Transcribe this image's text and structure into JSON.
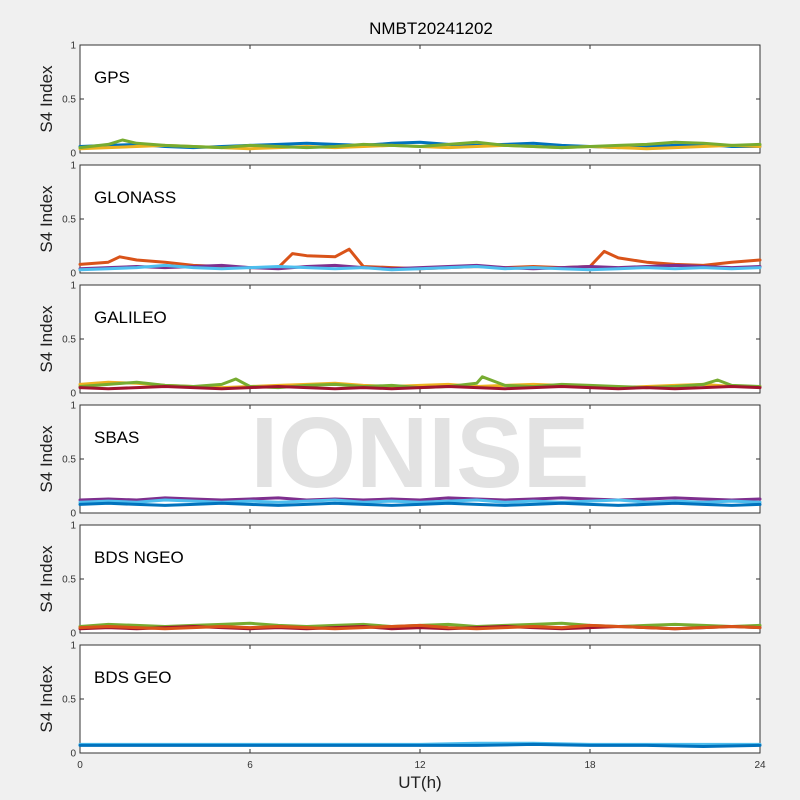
{
  "figure": {
    "title": "NMBT20241202",
    "watermark": "IONISE"
  },
  "chart_data": {
    "type": "line",
    "title": "NMBT20241202",
    "xlabel": "UT(h)",
    "ylabel": "S4 Index",
    "xlim": [
      0,
      24
    ],
    "ylim": [
      0,
      1
    ],
    "xticks": [
      "0",
      "6",
      "12",
      "18",
      "24"
    ],
    "yticks": [
      "0",
      "0.5",
      "1"
    ],
    "grid": false,
    "series_colors": [
      "#0072BD",
      "#D95319",
      "#EDB120",
      "#7E2F8E",
      "#77AC30",
      "#4DBEEE",
      "#A2142F"
    ],
    "panels": [
      {
        "name": "GPS",
        "series": [
          {
            "x": [
              0,
              1,
              2,
              3,
              4,
              5,
              6,
              7,
              8,
              9,
              10,
              11,
              12,
              13,
              14,
              15,
              16,
              17,
              18,
              19,
              20,
              21,
              22,
              23,
              24
            ],
            "y": [
              0.06,
              0.07,
              0.08,
              0.06,
              0.05,
              0.06,
              0.07,
              0.08,
              0.09,
              0.08,
              0.07,
              0.09,
              0.1,
              0.08,
              0.07,
              0.08,
              0.09,
              0.07,
              0.06,
              0.05,
              0.06,
              0.07,
              0.08,
              0.06,
              0.06
            ]
          },
          {
            "x": [
              0,
              1,
              2,
              3,
              4,
              5,
              6,
              7,
              8,
              9,
              10,
              11,
              12,
              13,
              14,
              15,
              16,
              17,
              18,
              19,
              20,
              21,
              22,
              23,
              24
            ],
            "y": [
              0.04,
              0.05,
              0.06,
              0.07,
              0.06,
              0.05,
              0.04,
              0.05,
              0.06,
              0.05,
              0.06,
              0.07,
              0.06,
              0.05,
              0.06,
              0.07,
              0.06,
              0.05,
              0.06,
              0.05,
              0.04,
              0.05,
              0.06,
              0.07,
              0.06
            ]
          },
          {
            "x": [
              0,
              1,
              1.5,
              2,
              3,
              4,
              5,
              6,
              7,
              8,
              9,
              10,
              11,
              12,
              13,
              14,
              15,
              16,
              17,
              18,
              19,
              20,
              21,
              22,
              23,
              24
            ],
            "y": [
              0.05,
              0.08,
              0.12,
              0.09,
              0.07,
              0.06,
              0.05,
              0.07,
              0.06,
              0.05,
              0.06,
              0.08,
              0.07,
              0.06,
              0.08,
              0.1,
              0.07,
              0.06,
              0.05,
              0.06,
              0.07,
              0.08,
              0.1,
              0.09,
              0.07,
              0.08
            ]
          }
        ]
      },
      {
        "name": "GLONASS",
        "series": [
          {
            "x": [
              0,
              1,
              1.4,
              2,
              3,
              4,
              5,
              6,
              7,
              7.5,
              8,
              9,
              9.5,
              10,
              11,
              12,
              13,
              14,
              15,
              16,
              17,
              18,
              18.5,
              19,
              20,
              21,
              22,
              23,
              24
            ],
            "y": [
              0.08,
              0.1,
              0.15,
              0.12,
              0.1,
              0.07,
              0.06,
              0.05,
              0.05,
              0.18,
              0.16,
              0.15,
              0.22,
              0.06,
              0.05,
              0.04,
              0.05,
              0.06,
              0.05,
              0.06,
              0.05,
              0.06,
              0.2,
              0.14,
              0.1,
              0.08,
              0.07,
              0.1,
              0.12
            ]
          },
          {
            "x": [
              0,
              1,
              2,
              3,
              4,
              5,
              6,
              7,
              8,
              9,
              10,
              11,
              12,
              13,
              14,
              15,
              16,
              17,
              18,
              19,
              20,
              21,
              22,
              23,
              24
            ],
            "y": [
              0.04,
              0.05,
              0.06,
              0.05,
              0.06,
              0.07,
              0.05,
              0.04,
              0.06,
              0.07,
              0.05,
              0.04,
              0.05,
              0.06,
              0.07,
              0.05,
              0.04,
              0.05,
              0.06,
              0.05,
              0.06,
              0.07,
              0.06,
              0.05,
              0.06
            ]
          },
          {
            "x": [
              0,
              1,
              2,
              3,
              4,
              5,
              6,
              7,
              8,
              9,
              10,
              11,
              12,
              13,
              14,
              15,
              16,
              17,
              18,
              19,
              20,
              21,
              22,
              23,
              24
            ],
            "y": [
              0.03,
              0.04,
              0.05,
              0.07,
              0.05,
              0.04,
              0.05,
              0.06,
              0.05,
              0.04,
              0.05,
              0.03,
              0.04,
              0.05,
              0.06,
              0.04,
              0.05,
              0.04,
              0.03,
              0.04,
              0.05,
              0.04,
              0.05,
              0.04,
              0.05
            ]
          }
        ]
      },
      {
        "name": "GALILEO",
        "series": [
          {
            "x": [
              0,
              1,
              2,
              3,
              4,
              5,
              6,
              7,
              8,
              9,
              10,
              11,
              12,
              13,
              14,
              15,
              16,
              17,
              18,
              19,
              20,
              21,
              22,
              23,
              24
            ],
            "y": [
              0.08,
              0.1,
              0.09,
              0.07,
              0.06,
              0.05,
              0.06,
              0.07,
              0.08,
              0.09,
              0.07,
              0.06,
              0.07,
              0.08,
              0.06,
              0.07,
              0.08,
              0.07,
              0.06,
              0.05,
              0.06,
              0.07,
              0.08,
              0.06,
              0.06
            ]
          },
          {
            "x": [
              0,
              1,
              2,
              3,
              4,
              5,
              5.5,
              6,
              7,
              8,
              9,
              10,
              11,
              12,
              13,
              14,
              14.2,
              15,
              16,
              17,
              18,
              19,
              20,
              21,
              22,
              22.5,
              23,
              24
            ],
            "y": [
              0.06,
              0.08,
              0.1,
              0.07,
              0.06,
              0.08,
              0.13,
              0.06,
              0.05,
              0.07,
              0.08,
              0.06,
              0.07,
              0.05,
              0.06,
              0.09,
              0.15,
              0.07,
              0.06,
              0.08,
              0.07,
              0.06,
              0.05,
              0.06,
              0.08,
              0.12,
              0.07,
              0.06
            ]
          },
          {
            "x": [
              0,
              1,
              2,
              3,
              4,
              5,
              6,
              7,
              8,
              9,
              10,
              11,
              12,
              13,
              14,
              15,
              16,
              17,
              18,
              19,
              20,
              21,
              22,
              23,
              24
            ],
            "y": [
              0.05,
              0.04,
              0.05,
              0.06,
              0.05,
              0.04,
              0.05,
              0.06,
              0.05,
              0.04,
              0.05,
              0.04,
              0.05,
              0.06,
              0.05,
              0.04,
              0.05,
              0.06,
              0.05,
              0.04,
              0.05,
              0.04,
              0.05,
              0.06,
              0.05
            ]
          }
        ]
      },
      {
        "name": "SBAS",
        "series": [
          {
            "x": [
              0,
              1,
              2,
              3,
              4,
              5,
              6,
              7,
              8,
              9,
              10,
              11,
              12,
              13,
              14,
              15,
              16,
              17,
              18,
              19,
              20,
              21,
              22,
              23,
              24
            ],
            "y": [
              0.12,
              0.13,
              0.12,
              0.14,
              0.13,
              0.12,
              0.13,
              0.14,
              0.12,
              0.13,
              0.12,
              0.13,
              0.12,
              0.14,
              0.13,
              0.12,
              0.13,
              0.14,
              0.13,
              0.12,
              0.13,
              0.14,
              0.13,
              0.12,
              0.13
            ]
          },
          {
            "x": [
              0,
              1,
              2,
              3,
              4,
              5,
              6,
              7,
              8,
              9,
              10,
              11,
              12,
              13,
              14,
              15,
              16,
              17,
              18,
              19,
              20,
              21,
              22,
              23,
              24
            ],
            "y": [
              0.1,
              0.11,
              0.1,
              0.12,
              0.11,
              0.1,
              0.11,
              0.1,
              0.11,
              0.12,
              0.1,
              0.11,
              0.1,
              0.11,
              0.12,
              0.1,
              0.11,
              0.1,
              0.11,
              0.12,
              0.1,
              0.11,
              0.1,
              0.11,
              0.1
            ]
          },
          {
            "x": [
              0,
              1,
              2,
              3,
              4,
              5,
              6,
              7,
              8,
              9,
              10,
              11,
              12,
              13,
              14,
              15,
              16,
              17,
              18,
              19,
              20,
              21,
              22,
              23,
              24
            ],
            "y": [
              0.08,
              0.09,
              0.08,
              0.07,
              0.08,
              0.09,
              0.08,
              0.07,
              0.08,
              0.09,
              0.08,
              0.07,
              0.08,
              0.09,
              0.08,
              0.07,
              0.08,
              0.09,
              0.08,
              0.07,
              0.08,
              0.09,
              0.08,
              0.07,
              0.08
            ]
          }
        ]
      },
      {
        "name": "BDS NGEO",
        "series": [
          {
            "x": [
              0,
              1,
              2,
              3,
              4,
              5,
              6,
              7,
              8,
              9,
              10,
              11,
              12,
              13,
              14,
              15,
              16,
              17,
              18,
              19,
              20,
              21,
              22,
              23,
              24
            ],
            "y": [
              0.06,
              0.08,
              0.07,
              0.06,
              0.07,
              0.08,
              0.09,
              0.07,
              0.06,
              0.07,
              0.08,
              0.06,
              0.07,
              0.08,
              0.06,
              0.07,
              0.08,
              0.09,
              0.07,
              0.06,
              0.07,
              0.08,
              0.07,
              0.06,
              0.07
            ]
          },
          {
            "x": [
              0,
              1,
              2,
              3,
              4,
              5,
              6,
              7,
              8,
              9,
              10,
              11,
              12,
              13,
              14,
              15,
              16,
              17,
              18,
              19,
              20,
              21,
              22,
              23,
              24
            ],
            "y": [
              0.04,
              0.05,
              0.04,
              0.05,
              0.06,
              0.05,
              0.04,
              0.05,
              0.04,
              0.05,
              0.06,
              0.04,
              0.05,
              0.04,
              0.05,
              0.06,
              0.05,
              0.04,
              0.05,
              0.06,
              0.05,
              0.04,
              0.05,
              0.06,
              0.05
            ]
          },
          {
            "x": [
              0,
              1,
              2,
              3,
              4,
              5,
              6,
              7,
              8,
              9,
              10,
              11,
              12,
              13,
              14,
              15,
              16,
              17,
              18,
              19,
              20,
              21,
              22,
              23,
              24
            ],
            "y": [
              0.05,
              0.06,
              0.05,
              0.04,
              0.05,
              0.06,
              0.05,
              0.06,
              0.05,
              0.04,
              0.05,
              0.06,
              0.07,
              0.05,
              0.04,
              0.05,
              0.06,
              0.05,
              0.07,
              0.06,
              0.05,
              0.04,
              0.05,
              0.06,
              0.05
            ]
          }
        ]
      },
      {
        "name": "BDS GEO",
        "series": [
          {
            "x": [
              0,
              2,
              4,
              6,
              8,
              10,
              12,
              14,
              16,
              18,
              20,
              22,
              24
            ],
            "y": [
              0.08,
              0.08,
              0.08,
              0.08,
              0.08,
              0.08,
              0.08,
              0.09,
              0.09,
              0.08,
              0.08,
              0.08,
              0.08
            ]
          },
          {
            "x": [
              0,
              2,
              4,
              6,
              8,
              10,
              12,
              14,
              16,
              18,
              20,
              22,
              24
            ],
            "y": [
              0.07,
              0.07,
              0.07,
              0.07,
              0.07,
              0.07,
              0.07,
              0.07,
              0.08,
              0.07,
              0.07,
              0.06,
              0.07
            ]
          }
        ]
      }
    ]
  }
}
